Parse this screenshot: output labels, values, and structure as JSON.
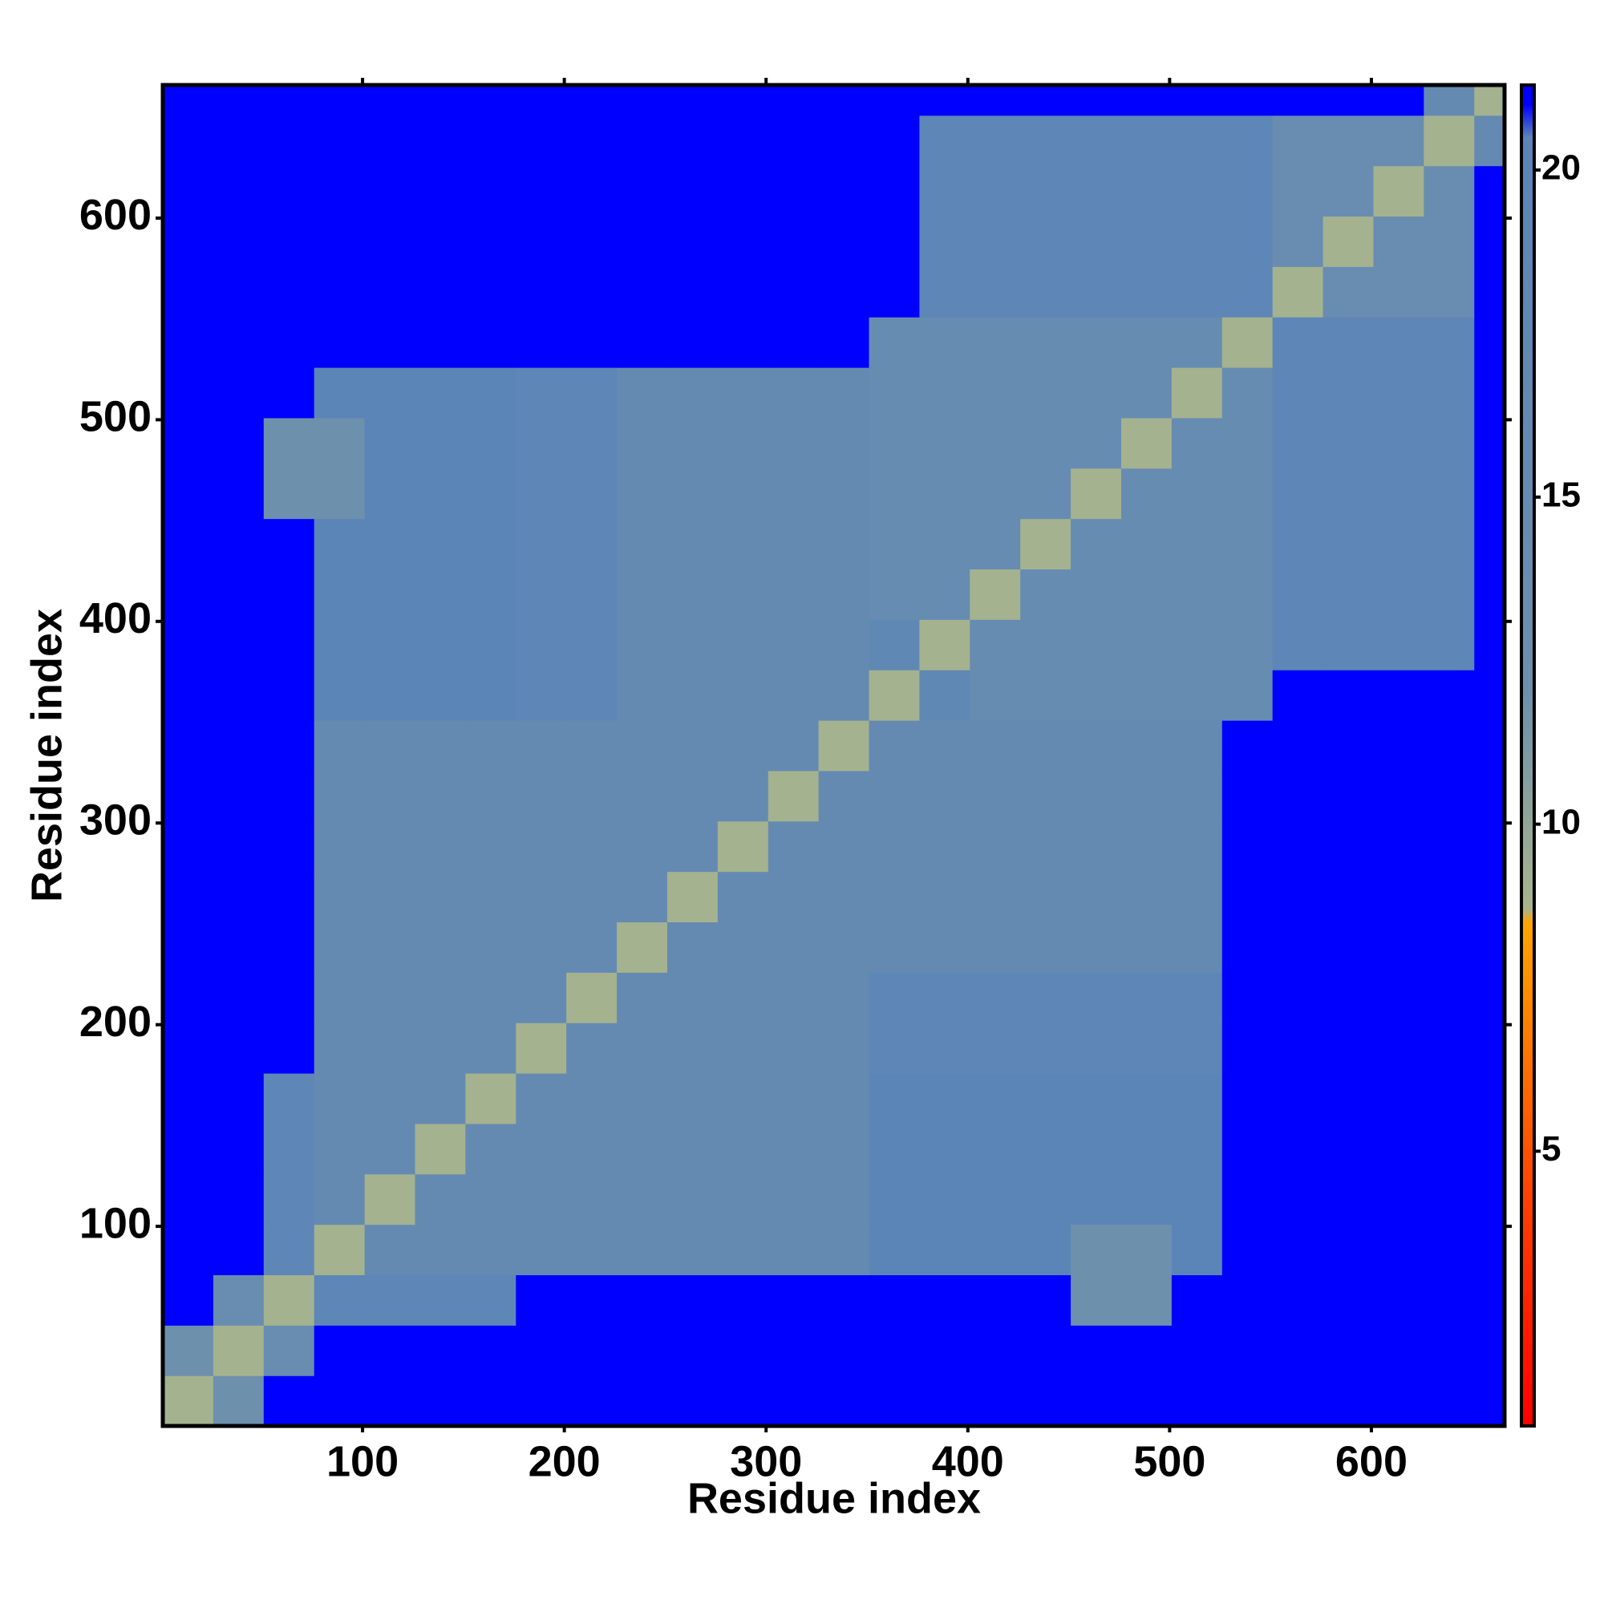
{
  "chart_data": {
    "type": "heatmap",
    "xlabel": "Residue index",
    "ylabel": "Residue index",
    "xlim": [
      1,
      666
    ],
    "ylim": [
      1,
      666
    ],
    "xticks": [
      100,
      200,
      300,
      400,
      500,
      600
    ],
    "yticks": [
      100,
      200,
      300,
      400,
      500,
      600
    ],
    "x_bins": [
      1,
      26,
      51,
      76,
      101,
      126,
      151,
      176,
      201,
      226,
      251,
      276,
      301,
      326,
      351,
      376,
      401,
      426,
      451,
      476,
      501,
      526,
      551,
      576,
      601,
      626,
      651,
      666
    ],
    "y_bins": [
      1,
      26,
      51,
      76,
      101,
      126,
      151,
      176,
      201,
      226,
      251,
      276,
      301,
      326,
      351,
      376,
      401,
      426,
      451,
      476,
      501,
      526,
      551,
      576,
      601,
      626,
      651,
      666
    ],
    "zlim": [
      0.8,
      21.3
    ],
    "colorbar_ticks": [
      5,
      10,
      15,
      20
    ],
    "colorscale": [
      [
        0.8,
        "#ff0000"
      ],
      [
        4,
        "#ff3a00"
      ],
      [
        8.5,
        "#ffa500"
      ],
      [
        8.7,
        "#a9b58c"
      ],
      [
        12,
        "#6d90ad"
      ],
      [
        20.5,
        "#5b84b8"
      ],
      [
        21,
        "#0000ff"
      ]
    ],
    "values": [
      [
        9,
        12,
        21,
        21,
        21,
        21,
        21,
        21,
        21,
        21,
        21,
        21,
        21,
        21,
        21,
        21,
        21,
        21,
        21,
        21,
        21,
        21,
        21,
        21,
        21,
        21,
        21
      ],
      [
        12,
        9,
        14,
        21,
        21,
        21,
        21,
        21,
        21,
        21,
        21,
        21,
        21,
        21,
        21,
        21,
        21,
        21,
        21,
        21,
        21,
        21,
        21,
        21,
        21,
        21,
        21
      ],
      [
        21,
        14,
        9,
        19,
        19,
        19,
        19,
        21,
        21,
        21,
        21,
        21,
        21,
        21,
        21,
        21,
        21,
        21,
        12,
        12,
        21,
        21,
        21,
        21,
        21,
        21,
        21
      ],
      [
        21,
        21,
        19,
        9,
        16,
        16,
        16,
        16,
        16,
        16,
        16,
        16,
        16,
        16,
        20,
        20,
        20,
        20,
        12,
        12,
        20,
        21,
        21,
        21,
        21,
        21,
        21
      ],
      [
        21,
        21,
        19,
        16,
        9,
        16,
        16,
        16,
        16,
        16,
        16,
        16,
        16,
        16,
        20,
        20,
        20,
        20,
        20,
        20,
        20,
        21,
        21,
        21,
        21,
        21,
        21
      ],
      [
        21,
        21,
        19,
        16,
        16,
        9,
        16,
        16,
        16,
        16,
        16,
        16,
        16,
        16,
        20,
        20,
        20,
        20,
        20,
        20,
        20,
        21,
        21,
        21,
        21,
        21,
        21
      ],
      [
        21,
        21,
        19,
        16,
        16,
        16,
        9,
        16,
        16,
        16,
        16,
        16,
        16,
        16,
        20,
        20,
        20,
        20,
        20,
        20,
        20,
        21,
        21,
        21,
        21,
        21,
        21
      ],
      [
        21,
        21,
        21,
        16,
        16,
        16,
        16,
        9,
        16,
        16,
        16,
        16,
        16,
        16,
        19,
        19,
        19,
        19,
        19,
        19,
        19,
        21,
        21,
        21,
        21,
        21,
        21
      ],
      [
        21,
        21,
        21,
        16,
        16,
        16,
        16,
        16,
        9,
        16,
        16,
        16,
        16,
        16,
        19,
        19,
        19,
        19,
        19,
        19,
        19,
        21,
        21,
        21,
        21,
        21,
        21
      ],
      [
        21,
        21,
        21,
        16,
        16,
        16,
        16,
        16,
        16,
        9,
        16,
        16,
        16,
        16,
        16,
        16,
        16,
        16,
        16,
        16,
        16,
        21,
        21,
        21,
        21,
        21,
        21
      ],
      [
        21,
        21,
        21,
        16,
        16,
        16,
        16,
        16,
        16,
        16,
        9,
        16,
        16,
        16,
        16,
        16,
        16,
        16,
        16,
        16,
        16,
        21,
        21,
        21,
        21,
        21,
        21
      ],
      [
        21,
        21,
        21,
        16,
        16,
        16,
        16,
        16,
        16,
        16,
        16,
        9,
        16,
        16,
        16,
        16,
        16,
        16,
        16,
        16,
        16,
        21,
        21,
        21,
        21,
        21,
        21
      ],
      [
        21,
        21,
        21,
        16,
        16,
        16,
        16,
        16,
        16,
        16,
        16,
        16,
        9,
        16,
        16,
        16,
        16,
        16,
        16,
        16,
        16,
        21,
        21,
        21,
        21,
        21,
        21
      ],
      [
        21,
        21,
        21,
        16,
        16,
        16,
        16,
        16,
        16,
        16,
        16,
        16,
        16,
        9,
        16,
        16,
        16,
        16,
        16,
        16,
        16,
        21,
        21,
        21,
        21,
        21,
        21
      ],
      [
        21,
        21,
        21,
        20,
        20,
        20,
        20,
        19,
        19,
        16,
        16,
        16,
        16,
        16,
        9,
        18,
        15,
        15,
        15,
        15,
        15,
        15,
        21,
        21,
        21,
        21,
        21
      ],
      [
        21,
        21,
        21,
        20,
        20,
        20,
        20,
        19,
        19,
        16,
        16,
        16,
        16,
        16,
        18,
        9,
        15,
        15,
        15,
        15,
        15,
        15,
        19,
        19,
        19,
        19,
        21
      ],
      [
        21,
        21,
        21,
        20,
        20,
        20,
        20,
        19,
        19,
        16,
        16,
        16,
        16,
        16,
        15,
        15,
        9,
        15,
        15,
        15,
        15,
        15,
        19,
        19,
        19,
        19,
        21
      ],
      [
        21,
        21,
        21,
        20,
        20,
        20,
        20,
        19,
        19,
        16,
        16,
        16,
        16,
        16,
        15,
        15,
        15,
        9,
        15,
        15,
        15,
        15,
        19,
        19,
        19,
        19,
        21
      ],
      [
        21,
        21,
        12,
        12,
        20,
        20,
        20,
        19,
        19,
        16,
        16,
        16,
        16,
        16,
        15,
        15,
        15,
        15,
        9,
        15,
        15,
        15,
        19,
        19,
        19,
        19,
        21
      ],
      [
        21,
        21,
        12,
        12,
        20,
        20,
        20,
        19,
        19,
        16,
        16,
        16,
        16,
        16,
        15,
        15,
        15,
        15,
        15,
        9,
        15,
        15,
        19,
        19,
        19,
        19,
        21
      ],
      [
        21,
        21,
        21,
        20,
        20,
        20,
        20,
        19,
        19,
        16,
        16,
        16,
        16,
        16,
        15,
        15,
        15,
        15,
        15,
        15,
        9,
        15,
        19,
        19,
        19,
        19,
        21
      ],
      [
        21,
        21,
        21,
        21,
        21,
        21,
        21,
        21,
        21,
        21,
        21,
        21,
        21,
        21,
        15,
        15,
        15,
        15,
        15,
        15,
        15,
        9,
        19,
        19,
        19,
        19,
        21
      ],
      [
        21,
        21,
        21,
        21,
        21,
        21,
        21,
        21,
        21,
        21,
        21,
        21,
        21,
        21,
        21,
        19,
        19,
        19,
        19,
        19,
        19,
        19,
        9,
        14,
        14,
        14,
        21
      ],
      [
        21,
        21,
        21,
        21,
        21,
        21,
        21,
        21,
        21,
        21,
        21,
        21,
        21,
        21,
        21,
        19,
        19,
        19,
        19,
        19,
        19,
        19,
        14,
        9,
        14,
        14,
        21
      ],
      [
        21,
        21,
        21,
        21,
        21,
        21,
        21,
        21,
        21,
        21,
        21,
        21,
        21,
        21,
        21,
        19,
        19,
        19,
        19,
        19,
        19,
        19,
        14,
        14,
        9,
        14,
        21
      ],
      [
        21,
        21,
        21,
        21,
        21,
        21,
        21,
        21,
        21,
        21,
        21,
        21,
        21,
        21,
        21,
        19,
        19,
        19,
        19,
        19,
        19,
        19,
        14,
        14,
        14,
        9,
        16
      ],
      [
        21,
        21,
        21,
        21,
        21,
        21,
        21,
        21,
        21,
        21,
        21,
        21,
        21,
        21,
        21,
        21,
        21,
        21,
        21,
        21,
        21,
        21,
        21,
        21,
        21,
        16,
        9
      ]
    ]
  }
}
